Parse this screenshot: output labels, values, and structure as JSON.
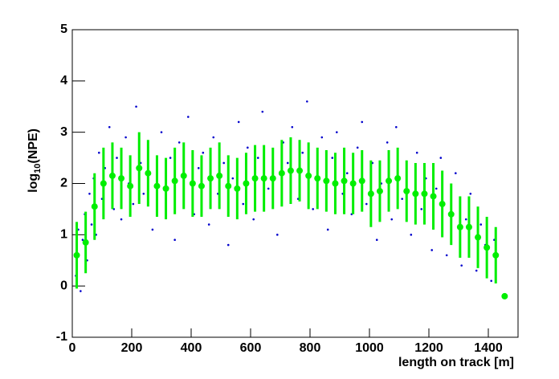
{
  "chart_data": {
    "type": "scatter",
    "xlabel": "length on track [m]",
    "ylabel": [
      "log",
      "10",
      "(NPE)"
    ],
    "xlim": [
      0,
      1500
    ],
    "ylim": [
      -1,
      5
    ],
    "xticks": [
      0,
      200,
      400,
      600,
      800,
      1000,
      1200,
      1400
    ],
    "yticks": [
      -1,
      0,
      1,
      2,
      3,
      4,
      5
    ],
    "grid": false,
    "series": [
      {
        "color": "#0000cc",
        "x": [
          12,
          20,
          28,
          35,
          42,
          50,
          58,
          65,
          72,
          80,
          90,
          100,
          110,
          125,
          140,
          150,
          165,
          180,
          190,
          205,
          215,
          230,
          240,
          255,
          270,
          285,
          300,
          315,
          330,
          345,
          360,
          375,
          390,
          410,
          425,
          440,
          460,
          475,
          490,
          510,
          525,
          540,
          560,
          575,
          590,
          610,
          625,
          640,
          660,
          675,
          690,
          710,
          725,
          740,
          760,
          775,
          790,
          810,
          825,
          840,
          860,
          875,
          890,
          910,
          925,
          940,
          960,
          975,
          990,
          1010,
          1025,
          1040,
          1060,
          1075,
          1090,
          1110,
          1125,
          1140,
          1160,
          1175,
          1190,
          1210,
          1225,
          1240,
          1260,
          1275,
          1290,
          1310,
          1325,
          1340,
          1360,
          1375,
          1390,
          1410,
          1420
        ],
        "y": [
          0.2,
          1.1,
          -0.1,
          0.9,
          1.4,
          0.5,
          1.8,
          1.2,
          2.1,
          1.0,
          2.6,
          1.7,
          2.3,
          3.1,
          1.5,
          2.5,
          1.3,
          2.9,
          2.0,
          1.6,
          3.5,
          2.4,
          1.8,
          2.7,
          1.1,
          2.2,
          3.0,
          1.7,
          2.5,
          0.9,
          2.8,
          1.9,
          3.3,
          1.4,
          2.3,
          2.6,
          1.2,
          2.9,
          1.8,
          2.4,
          0.8,
          2.1,
          3.2,
          1.6,
          2.7,
          1.3,
          2.5,
          3.4,
          1.9,
          2.2,
          1.0,
          2.8,
          2.4,
          3.1,
          1.7,
          2.6,
          3.6,
          1.5,
          2.3,
          2.9,
          1.1,
          2.5,
          3.0,
          1.8,
          2.2,
          1.4,
          2.7,
          3.2,
          1.6,
          2.4,
          0.9,
          2.0,
          2.8,
          1.3,
          3.1,
          1.7,
          2.3,
          1.0,
          2.6,
          1.5,
          2.1,
          0.7,
          1.9,
          2.5,
          0.6,
          1.5,
          2.2,
          0.4,
          1.3,
          1.8,
          0.3,
          1.2,
          0.8,
          0.1,
          0.9
        ]
      },
      {
        "color": "#00ee00",
        "x": [
          15,
          45,
          75,
          105,
          135,
          165,
          195,
          225,
          255,
          285,
          315,
          345,
          375,
          405,
          435,
          465,
          495,
          525,
          555,
          585,
          615,
          645,
          675,
          705,
          735,
          765,
          795,
          825,
          855,
          885,
          915,
          945,
          975,
          1005,
          1035,
          1065,
          1095,
          1125,
          1155,
          1185,
          1215,
          1245,
          1275,
          1305,
          1335,
          1365,
          1395,
          1425,
          1455
        ],
        "y": [
          0.6,
          0.85,
          1.55,
          2.0,
          2.15,
          2.1,
          1.95,
          2.3,
          2.2,
          1.95,
          1.9,
          2.05,
          2.15,
          2.0,
          1.95,
          2.1,
          2.15,
          1.95,
          1.9,
          2.0,
          2.1,
          2.1,
          2.1,
          2.2,
          2.25,
          2.25,
          2.15,
          2.1,
          2.05,
          2.0,
          2.05,
          2.0,
          2.05,
          1.8,
          1.85,
          2.05,
          2.1,
          1.85,
          1.8,
          1.8,
          1.75,
          1.6,
          1.4,
          1.15,
          1.15,
          0.95,
          0.75,
          0.6,
          -0.2
        ],
        "errors": [
          0.65,
          0.6,
          0.65,
          0.7,
          0.65,
          0.6,
          0.6,
          0.7,
          0.65,
          0.6,
          0.6,
          0.65,
          0.65,
          0.65,
          0.6,
          0.6,
          0.65,
          0.6,
          0.6,
          0.6,
          0.65,
          0.65,
          0.6,
          0.65,
          0.65,
          0.6,
          0.65,
          0.6,
          0.6,
          0.6,
          0.65,
          0.6,
          0.6,
          0.65,
          0.6,
          0.6,
          0.6,
          0.6,
          0.6,
          0.6,
          0.65,
          0.65,
          0.6,
          0.6,
          0.6,
          0.6,
          0.6,
          0.55,
          0
        ]
      }
    ]
  }
}
